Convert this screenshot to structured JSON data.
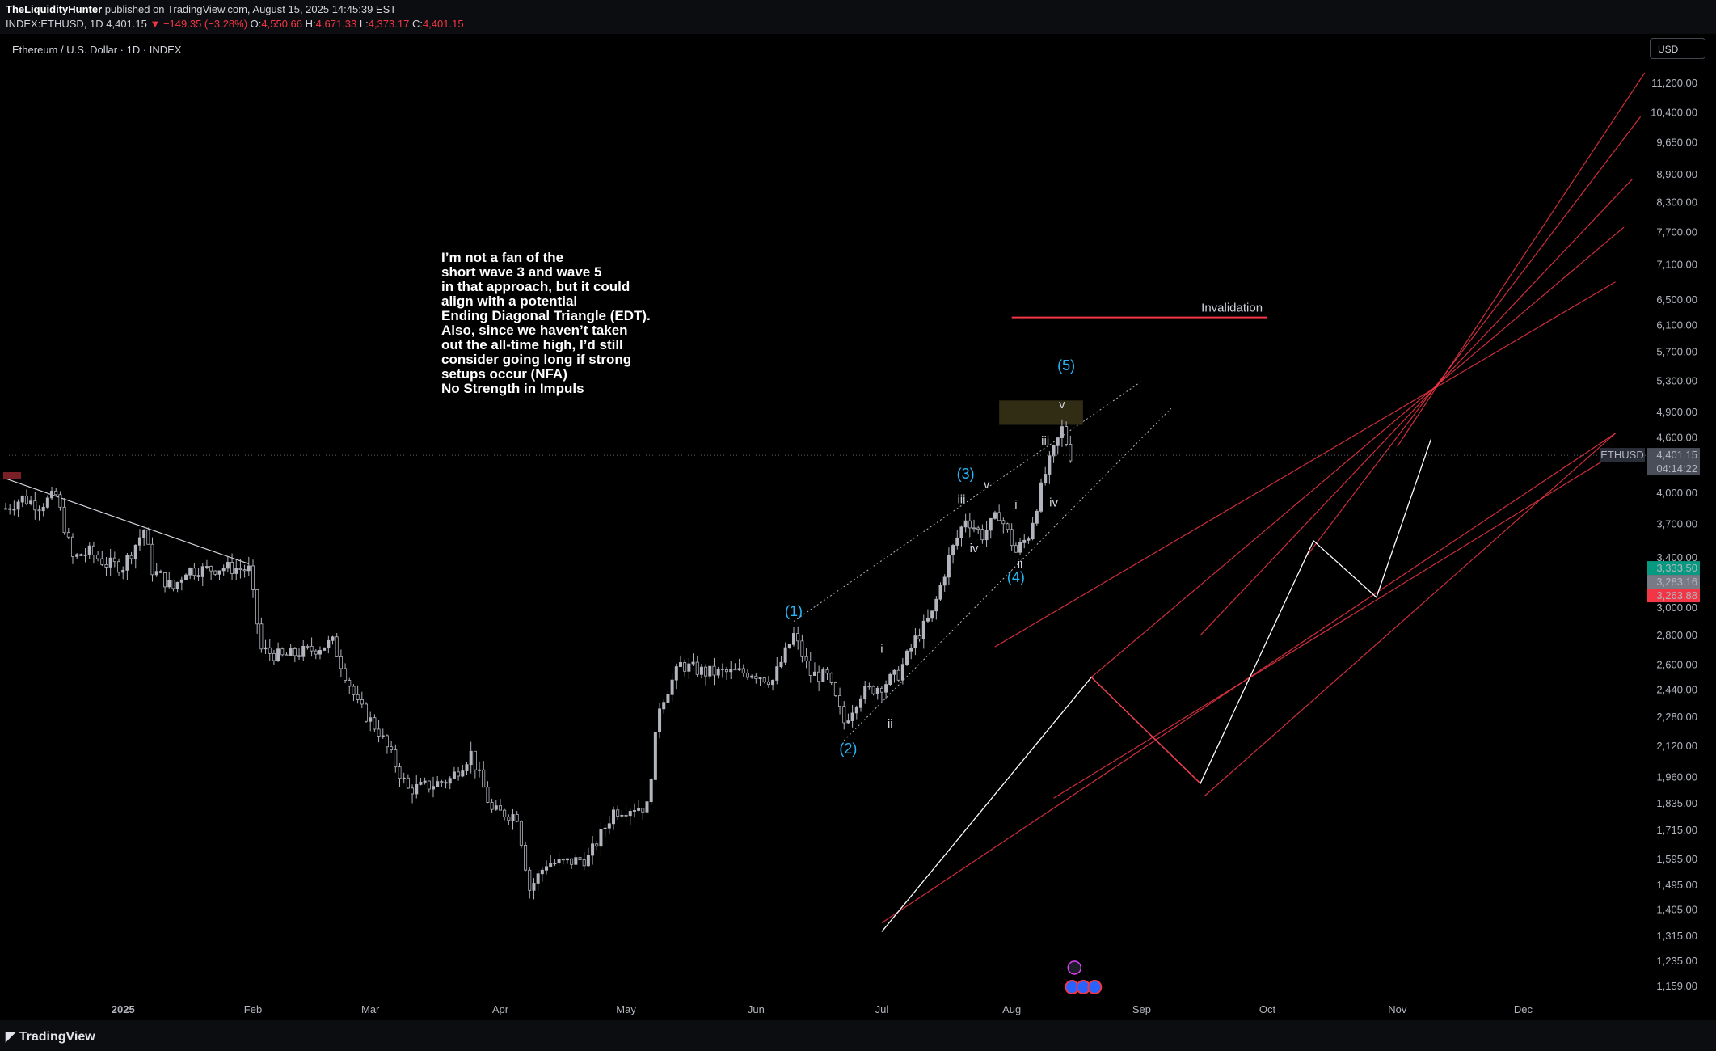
{
  "header": {
    "author": "TheLiquidityHunter",
    "published": "published on TradingView.com, August 15, 2025 14:45:39 EST",
    "symbol_line_prefix": "INDEX:ETHUSD, 1D 4,401.15",
    "change": "▼ −149.35 (−3.28%)",
    "o_label": "O:",
    "o_value": "4,550.66",
    "h_label": "H:",
    "h_value": "4,671.33",
    "l_label": "L:",
    "l_value": "4,373.17",
    "c_label": "C:",
    "c_value": "4,401.15"
  },
  "chart_title": "Ethereum / U.S. Dollar · 1D · INDEX",
  "currency_button": "USD",
  "footer": {
    "logo": "TradingView"
  },
  "colors": {
    "background": "#000000",
    "red_lines": "#f23645",
    "wave_labels": "#29b6f6",
    "candles": "#b2b5be",
    "highlight_box": "#3a3418"
  },
  "chart_data": {
    "type": "candlestick",
    "scale": "log",
    "ylim": [
      1100,
      12000
    ],
    "x_range": [
      "2024-12-04",
      "2025-12-31"
    ],
    "y_ticks": [
      "11,200.00",
      "10,400.00",
      "9,650.00",
      "8,900.00",
      "8,300.00",
      "7,700.00",
      "7,100.00",
      "6,500.00",
      "6,100.00",
      "5,700.00",
      "5,300.00",
      "4,900.00",
      "4,600.00",
      "4,000.00",
      "3,700.00",
      "3,400.00",
      "3,000.00",
      "2,800.00",
      "2,600.00",
      "2,440.00",
      "2,280.00",
      "2,120.00",
      "1,960.00",
      "1,835.00",
      "1,715.00",
      "1,595.00",
      "1,495.00",
      "1,405.00",
      "1,315.00",
      "1,235.00",
      "1,159.00"
    ],
    "x_ticks": [
      {
        "label": "2025",
        "date": "2025-01-01"
      },
      {
        "label": "Feb",
        "date": "2025-02-01"
      },
      {
        "label": "Mar",
        "date": "2025-03-01"
      },
      {
        "label": "Apr",
        "date": "2025-04-01"
      },
      {
        "label": "May",
        "date": "2025-05-01"
      },
      {
        "label": "Jun",
        "date": "2025-06-01"
      },
      {
        "label": "Jul",
        "date": "2025-07-01"
      },
      {
        "label": "Aug",
        "date": "2025-08-01"
      },
      {
        "label": "Sep",
        "date": "2025-09-01"
      },
      {
        "label": "Oct",
        "date": "2025-10-01"
      },
      {
        "label": "Nov",
        "date": "2025-11-01"
      },
      {
        "label": "Dec",
        "date": "2025-12-01"
      }
    ],
    "price_path": [
      [
        "2024-12-04",
        3850
      ],
      [
        "2024-12-08",
        3950
      ],
      [
        "2024-12-12",
        3880
      ],
      [
        "2024-12-16",
        3980
      ],
      [
        "2024-12-20",
        3400
      ],
      [
        "2024-12-24",
        3450
      ],
      [
        "2024-12-28",
        3350
      ],
      [
        "2025-01-01",
        3330
      ],
      [
        "2025-01-06",
        3650
      ],
      [
        "2025-01-08",
        3300
      ],
      [
        "2025-01-13",
        3150
      ],
      [
        "2025-01-16",
        3300
      ],
      [
        "2025-01-20",
        3300
      ],
      [
        "2025-01-25",
        3320
      ],
      [
        "2025-01-31",
        3300
      ],
      [
        "2025-02-03",
        2700
      ],
      [
        "2025-02-08",
        2650
      ],
      [
        "2025-02-15",
        2700
      ],
      [
        "2025-02-20",
        2750
      ],
      [
        "2025-02-26",
        2350
      ],
      [
        "2025-03-03",
        2200
      ],
      [
        "2025-03-10",
        1900
      ],
      [
        "2025-03-15",
        1920
      ],
      [
        "2025-03-20",
        1950
      ],
      [
        "2025-03-25",
        2080
      ],
      [
        "2025-03-30",
        1800
      ],
      [
        "2025-04-05",
        1780
      ],
      [
        "2025-04-08",
        1480
      ],
      [
        "2025-04-12",
        1580
      ],
      [
        "2025-04-16",
        1580
      ],
      [
        "2025-04-22",
        1600
      ],
      [
        "2025-04-28",
        1800
      ],
      [
        "2025-05-03",
        1820
      ],
      [
        "2025-05-06",
        1820
      ],
      [
        "2025-05-09",
        2350
      ],
      [
        "2025-05-14",
        2600
      ],
      [
        "2025-05-20",
        2550
      ],
      [
        "2025-05-26",
        2550
      ],
      [
        "2025-05-31",
        2550
      ],
      [
        "2025-06-05",
        2500
      ],
      [
        "2025-06-10",
        2800
      ],
      [
        "2025-06-14",
        2540
      ],
      [
        "2025-06-18",
        2520
      ],
      [
        "2025-06-22",
        2250
      ],
      [
        "2025-06-26",
        2420
      ],
      [
        "2025-07-01",
        2470
      ],
      [
        "2025-07-05",
        2540
      ],
      [
        "2025-07-09",
        2770
      ],
      [
        "2025-07-13",
        2950
      ],
      [
        "2025-07-17",
        3400
      ],
      [
        "2025-07-21",
        3760
      ],
      [
        "2025-07-25",
        3600
      ],
      [
        "2025-07-29",
        3800
      ],
      [
        "2025-08-02",
        3450
      ],
      [
        "2025-08-05",
        3600
      ],
      [
        "2025-08-09",
        4200
      ],
      [
        "2025-08-13",
        4700
      ],
      [
        "2025-08-15",
        4401
      ]
    ],
    "last_price": "4,401.15",
    "countdown": "04:14:22",
    "price_tags": [
      {
        "label": "ETHUSD",
        "value": "4,401.15"
      },
      {
        "value": "3,333.50",
        "color": "#089981"
      },
      {
        "value": "3,283.16",
        "color": "#787b86"
      },
      {
        "value": "3,263.88",
        "color": "#f23645"
      }
    ],
    "wave_labels": [
      {
        "text": "(1)",
        "date": "2025-06-10",
        "price": 2940
      },
      {
        "text": "(2)",
        "date": "2025-06-23",
        "price": 2080
      },
      {
        "text": "(3)",
        "date": "2025-07-21",
        "price": 4150
      },
      {
        "text": "(4)",
        "date": "2025-08-02",
        "price": 3200
      },
      {
        "text": "(5)",
        "date": "2025-08-14",
        "price": 5450
      }
    ],
    "subwave_labels": [
      {
        "text": "i",
        "date": "2025-07-01",
        "price": 2680
      },
      {
        "text": "ii",
        "date": "2025-07-03",
        "price": 2220
      },
      {
        "text": "iii",
        "date": "2025-07-20",
        "price": 3900
      },
      {
        "text": "iv",
        "date": "2025-07-23",
        "price": 3450
      },
      {
        "text": "v",
        "date": "2025-07-26",
        "price": 4050
      },
      {
        "text": "i",
        "date": "2025-08-02",
        "price": 3850
      },
      {
        "text": "ii",
        "date": "2025-08-03",
        "price": 3320
      },
      {
        "text": "iii",
        "date": "2025-08-09",
        "price": 4520
      },
      {
        "text": "iv",
        "date": "2025-08-11",
        "price": 3870
      },
      {
        "text": "v",
        "date": "2025-08-13",
        "price": 4950
      }
    ],
    "downtrend_line": {
      "from": [
        "2024-12-04",
        4150
      ],
      "to": [
        "2025-01-31",
        3350
      ]
    },
    "wedge_upper": {
      "from": [
        "2025-06-10",
        2900
      ],
      "to": [
        "2025-09-01",
        5300
      ]
    },
    "wedge_lower": {
      "from": [
        "2025-06-22",
        2150
      ],
      "to": [
        "2025-09-08",
        4950
      ]
    },
    "highlight_box": {
      "from": [
        "2025-07-29",
        4750
      ],
      "to": [
        "2025-08-18",
        5050
      ]
    },
    "invalidation": {
      "label": "Invalidation",
      "price": 6220,
      "from": "2025-08-01",
      "to": "2025-10-01"
    },
    "projection_path": [
      [
        "2025-07-01",
        1330
      ],
      [
        "2025-08-20",
        2520
      ],
      [
        "2025-09-15",
        1930
      ],
      [
        "2025-10-12",
        3550
      ],
      [
        "2025-10-27",
        3080
      ],
      [
        "2025-11-09",
        4580
      ]
    ],
    "projection_segment_red": {
      "from": [
        "2025-08-20",
        2520
      ],
      "to": [
        "2025-09-15",
        1930
      ]
    },
    "channel_lines": [
      {
        "from": [
          "2025-07-01",
          1360
        ],
        "to": [
          "2025-12-23",
          4650
        ]
      },
      {
        "from": [
          "2025-09-16",
          1870
        ],
        "to": [
          "2025-12-23",
          4650
        ]
      },
      {
        "from": [
          "2025-08-11",
          1860
        ],
        "to": [
          "2025-12-25",
          4480
        ]
      },
      {
        "from": [
          "2025-07-28",
          2720
        ],
        "to": [
          "2025-12-23",
          6800
        ]
      },
      {
        "from": [
          "2025-08-20",
          2520
        ],
        "to": [
          "2025-12-25",
          7800
        ]
      },
      {
        "from": [
          "2025-09-15",
          2800
        ],
        "to": [
          "2025-12-27",
          8800
        ]
      },
      {
        "from": [
          "2025-10-10",
          3400
        ],
        "to": [
          "2025-12-29",
          10300
        ]
      },
      {
        "from": [
          "2025-11-01",
          4500
        ],
        "to": [
          "2025-12-30",
          11500
        ]
      }
    ],
    "annotation_text": [
      "I’m not a fan of the",
      "short wave 3 and wave 5",
      "in that approach, but it could",
      "align with a potential",
      "Ending Diagonal Triangle (EDT).",
      "Also, since we haven’t taken",
      "out the all-time high, I’d still",
      "consider going long if strong",
      "setups occur (NFA)",
      "No Strength in Impuls"
    ]
  }
}
